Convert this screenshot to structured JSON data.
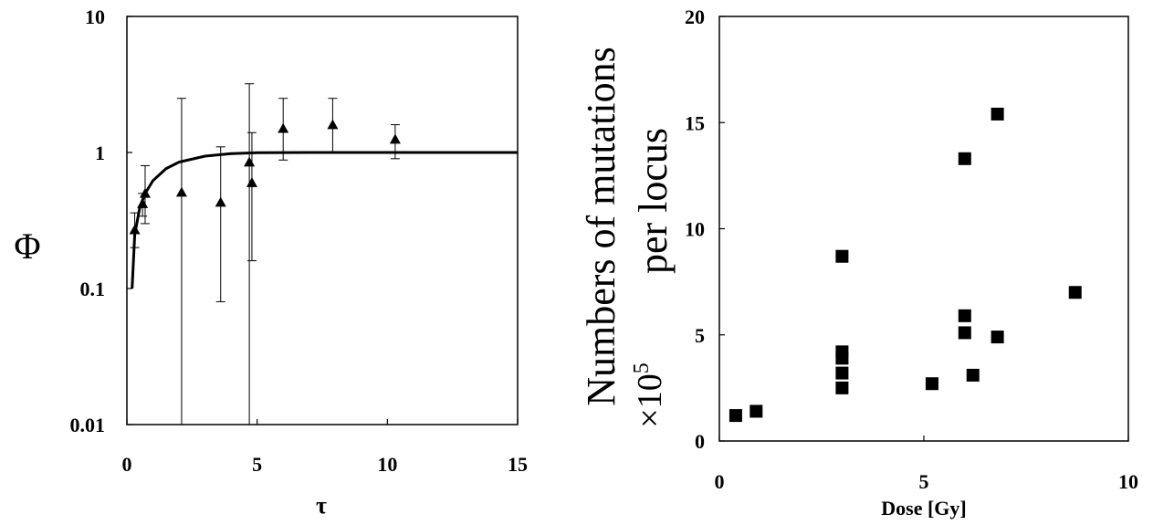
{
  "chart_data": [
    {
      "type": "scatter",
      "title": "",
      "xlabel": "τ",
      "ylabel": "Φ",
      "yscale": "log",
      "xlim": [
        0,
        15
      ],
      "ylim": [
        0.01,
        10
      ],
      "xticks": [
        "0",
        "5",
        "10",
        "15"
      ],
      "yticks": [
        "0.01",
        "0.1",
        "1",
        "10"
      ],
      "grid": false,
      "legend": "none",
      "marker": "triangle",
      "points": [
        {
          "x": 0.3,
          "y": 0.27,
          "ylo": 0.2,
          "yhi": 0.36
        },
        {
          "x": 0.6,
          "y": 0.42,
          "ylo": 0.34,
          "yhi": 0.5
        },
        {
          "x": 0.7,
          "y": 0.5,
          "ylo": 0.3,
          "yhi": 0.8
        },
        {
          "x": 2.1,
          "y": 0.51,
          "ylo": 0.01,
          "yhi": 2.5
        },
        {
          "x": 3.6,
          "y": 0.43,
          "ylo": 0.08,
          "yhi": 1.1
        },
        {
          "x": 4.7,
          "y": 0.85,
          "ylo": 0.01,
          "yhi": 3.2
        },
        {
          "x": 4.8,
          "y": 0.6,
          "ylo": 0.16,
          "yhi": 1.4
        },
        {
          "x": 6.0,
          "y": 1.5,
          "ylo": 0.88,
          "yhi": 2.5
        },
        {
          "x": 7.9,
          "y": 1.6,
          "ylo": 1.0,
          "yhi": 2.5
        },
        {
          "x": 10.3,
          "y": 1.25,
          "ylo": 0.9,
          "yhi": 1.6
        }
      ],
      "fit_curve": {
        "description": "saturating curve",
        "x": [
          0.2,
          0.3,
          0.5,
          0.7,
          1.0,
          1.5,
          2.0,
          3.0,
          4.0,
          5.0,
          7.0,
          10.0,
          15.0
        ],
        "y": [
          0.1,
          0.25,
          0.4,
          0.5,
          0.62,
          0.76,
          0.85,
          0.94,
          0.98,
          0.995,
          1.0,
          1.0,
          1.0
        ]
      }
    },
    {
      "type": "scatter",
      "title": "",
      "xlabel": "Dose [Gy]",
      "ylabel_line1": "Numbers of mutations",
      "ylabel_line2": "per locus",
      "ylabel_unit": "×10",
      "ylabel_unit_exp": "5",
      "xlim": [
        0,
        10
      ],
      "ylim": [
        0,
        20
      ],
      "xticks": [
        "0",
        "5",
        "10"
      ],
      "yticks": [
        "0",
        "5",
        "10",
        "15",
        "20"
      ],
      "grid": false,
      "legend": "none",
      "marker": "square",
      "points": [
        {
          "x": 0.4,
          "y": 1.2
        },
        {
          "x": 0.9,
          "y": 1.4
        },
        {
          "x": 3.0,
          "y": 8.7
        },
        {
          "x": 3.0,
          "y": 4.2
        },
        {
          "x": 3.0,
          "y": 3.9
        },
        {
          "x": 3.0,
          "y": 3.2
        },
        {
          "x": 3.0,
          "y": 2.5
        },
        {
          "x": 5.2,
          "y": 2.7
        },
        {
          "x": 6.0,
          "y": 13.3
        },
        {
          "x": 6.0,
          "y": 5.9
        },
        {
          "x": 6.0,
          "y": 5.1
        },
        {
          "x": 6.2,
          "y": 3.1
        },
        {
          "x": 6.8,
          "y": 15.4
        },
        {
          "x": 6.8,
          "y": 4.9
        },
        {
          "x": 8.7,
          "y": 7.0
        }
      ]
    }
  ]
}
